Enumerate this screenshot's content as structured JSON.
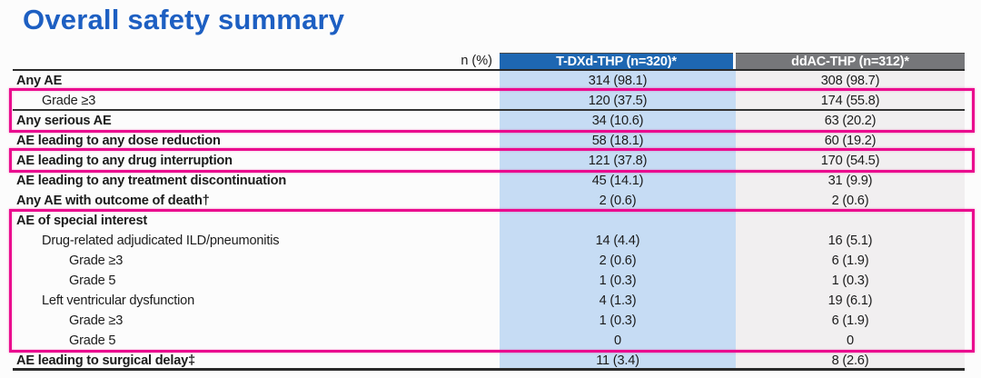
{
  "page_title": "Overall safety summary",
  "colors": {
    "title_blue": "#1d5fc2",
    "header_blue": "#1e67b2",
    "header_gray": "#76777a",
    "tdxd_column_bg": "#c6dcf4",
    "ddac_column_bg": "#f1eff0",
    "highlight_pink": "#ea0b8e"
  },
  "table": {
    "corner_label": "n (%)",
    "columns": [
      {
        "label": "T-DXd-THP (n=320)*"
      },
      {
        "label": "ddAC-THP (n=312)*"
      }
    ],
    "rows": [
      {
        "label": "Any AE",
        "bold": true,
        "indent": 0,
        "values": [
          "314 (98.1)",
          "308 (98.7)"
        ]
      },
      {
        "label": "Grade ≥3",
        "bold": false,
        "indent": 1,
        "values": [
          "120 (37.5)",
          "174 (55.8)"
        ],
        "separator_below": true
      },
      {
        "label": "Any serious AE",
        "bold": true,
        "indent": 0,
        "values": [
          "34 (10.6)",
          "63 (20.2)"
        ]
      },
      {
        "label": "AE leading to any dose reduction",
        "bold": true,
        "indent": 0,
        "values": [
          "58 (18.1)",
          "60 (19.2)"
        ]
      },
      {
        "label": "AE leading to any drug interruption",
        "bold": true,
        "indent": 0,
        "values": [
          "121 (37.8)",
          "170 (54.5)"
        ]
      },
      {
        "label": "AE leading to any treatment discontinuation",
        "bold": true,
        "indent": 0,
        "values": [
          "45 (14.1)",
          "31 (9.9)"
        ]
      },
      {
        "label": "Any AE with outcome of death†",
        "bold": true,
        "indent": 0,
        "values": [
          "2 (0.6)",
          "2 (0.6)"
        ]
      },
      {
        "label": "AE of special interest",
        "bold": true,
        "indent": 0,
        "values": [
          "",
          ""
        ]
      },
      {
        "label": "Drug-related adjudicated ILD/pneumonitis",
        "bold": false,
        "indent": 1,
        "values": [
          "14 (4.4)",
          "16 (5.1)"
        ]
      },
      {
        "label": "Grade ≥3",
        "bold": false,
        "indent": 2,
        "values": [
          "2 (0.6)",
          "6 (1.9)"
        ]
      },
      {
        "label": "Grade 5",
        "bold": false,
        "indent": 2,
        "values": [
          "1 (0.3)",
          "1 (0.3)"
        ]
      },
      {
        "label": "Left ventricular dysfunction",
        "bold": false,
        "indent": 1,
        "values": [
          "4 (1.3)",
          "19 (6.1)"
        ]
      },
      {
        "label": "Grade ≥3",
        "bold": false,
        "indent": 2,
        "values": [
          "1 (0.3)",
          "6 (1.9)"
        ]
      },
      {
        "label": "Grade 5",
        "bold": false,
        "indent": 2,
        "values": [
          "0",
          "0"
        ]
      },
      {
        "label": "AE leading to surgical delay‡",
        "bold": true,
        "indent": 0,
        "values": [
          "11 (3.4)",
          "8 (2.6)"
        ]
      }
    ]
  }
}
